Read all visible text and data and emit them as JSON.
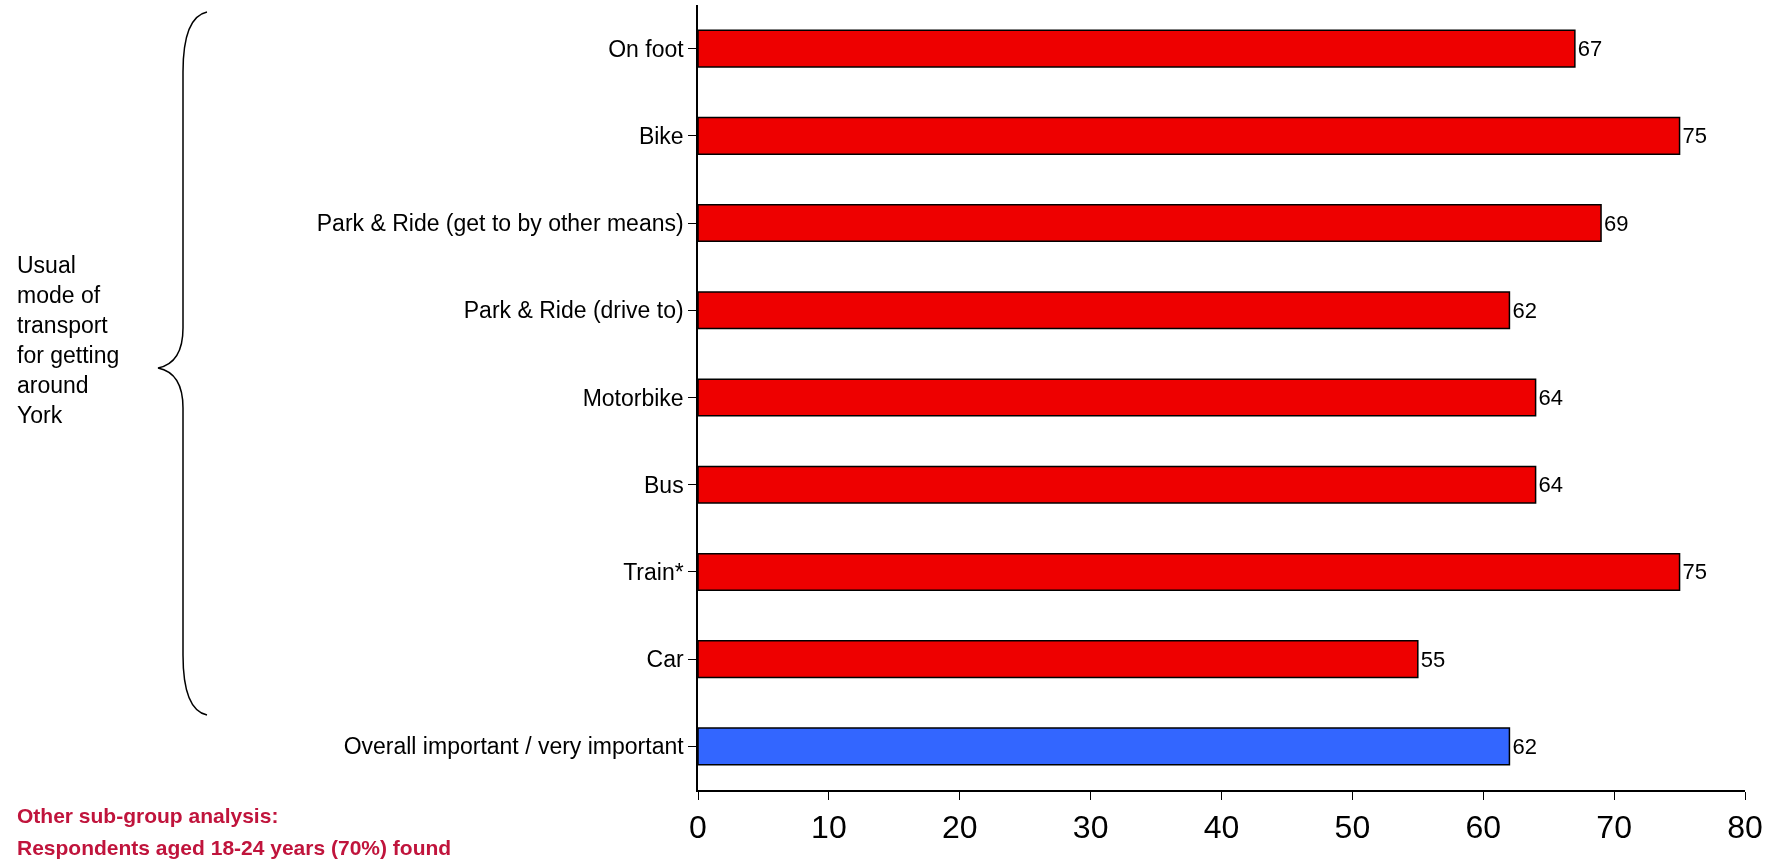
{
  "chart_data": {
    "type": "bar",
    "orientation": "horizontal",
    "categories": [
      "On foot",
      "Bike",
      "Park & Ride (get to by other means)",
      "Park & Ride (drive to)",
      "Motorbike",
      "Bus",
      "Train*",
      "Car",
      "Overall important / very important"
    ],
    "values": [
      67,
      75,
      69,
      62,
      64,
      64,
      75,
      55,
      62
    ],
    "colors": [
      "#ee0000",
      "#ee0000",
      "#ee0000",
      "#ee0000",
      "#ee0000",
      "#ee0000",
      "#ee0000",
      "#ee0000",
      "#3366ff"
    ],
    "xlim": [
      0,
      80
    ],
    "xticks": [
      0,
      10,
      20,
      30,
      40,
      50,
      60,
      70,
      80
    ],
    "data_labels": true,
    "annotations": [
      "Usual\nmode of\ntransport\nfor getting\naround\nYork",
      "Other sub-group analysis:",
      "Respondents aged 18-24 years (70%) found"
    ]
  }
}
